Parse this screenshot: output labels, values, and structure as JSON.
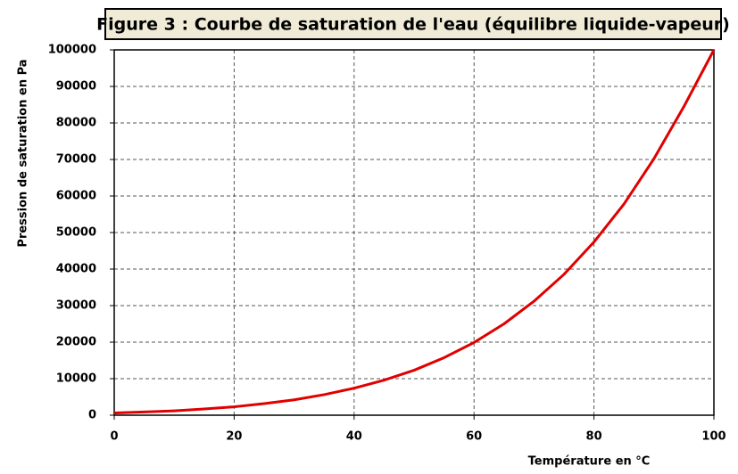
{
  "chart_data": {
    "type": "line",
    "title": "Figure 3 : Courbe de saturation de l'eau (équilibre liquide-vapeur)",
    "x_label": "Température en °C",
    "y_label": "Pression de saturation en Pa",
    "x": [
      0,
      5,
      10,
      15,
      20,
      25,
      30,
      35,
      40,
      45,
      50,
      55,
      60,
      65,
      70,
      75,
      80,
      85,
      90,
      95,
      100
    ],
    "series": [
      {
        "name": "Pression de saturation",
        "color": "#e00000",
        "values": [
          600,
          870,
          1200,
          1700,
          2300,
          3170,
          4200,
          5620,
          7400,
          9590,
          12300,
          15740,
          19900,
          25000,
          31200,
          38550,
          47400,
          57800,
          70200,
          84500,
          100000
        ]
      }
    ],
    "xlim": [
      0,
      100
    ],
    "xticks": [
      0,
      20,
      40,
      60,
      80,
      100
    ],
    "ylim": [
      0,
      100000
    ],
    "yticks": [
      0,
      10000,
      20000,
      30000,
      40000,
      50000,
      60000,
      70000,
      80000,
      90000,
      100000
    ],
    "grid": true
  }
}
